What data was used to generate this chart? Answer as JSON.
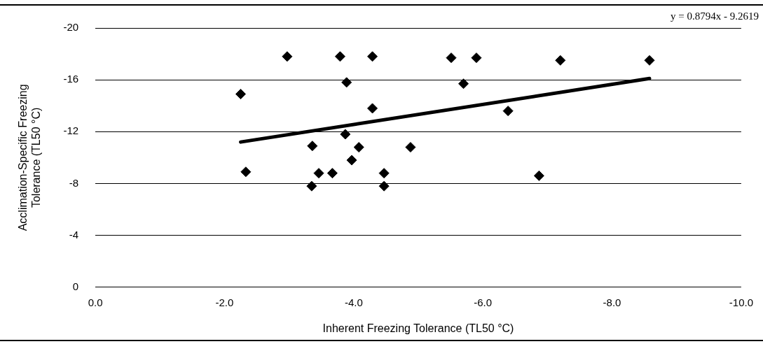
{
  "chart_data": {
    "type": "scatter",
    "xlabel": "Inherent Freezing Tolerance (TL50 °C)",
    "ylabel": "Acclimation-Specific Freezing Tolerance (TL50 °C)",
    "annotations": [
      "y = 0.8794x - 9.2619"
    ],
    "xlim": [
      0,
      -10
    ],
    "ylim": [
      0,
      -20
    ],
    "xticks": [
      {
        "value": 0,
        "label": "0.0"
      },
      {
        "value": -2,
        "label": "-2.0"
      },
      {
        "value": -4,
        "label": "-4.0"
      },
      {
        "value": -6,
        "label": "-6.0"
      },
      {
        "value": -8,
        "label": "-8.0"
      },
      {
        "value": -10,
        "label": "-10.0"
      }
    ],
    "yticks": [
      0,
      -4,
      -8,
      -12,
      -16,
      -20
    ],
    "grid": "y",
    "legend": false,
    "marker": "diamond",
    "series": [
      {
        "color": "#000000",
        "x": [
          -2.25,
          -2.33,
          -2.97,
          -3.36,
          -3.35,
          -3.46,
          -3.67,
          -3.79,
          -3.89,
          -3.87,
          -3.97,
          -4.08,
          -4.29,
          -4.29,
          -4.47,
          -4.47,
          -4.88,
          -5.51,
          -5.9,
          -5.7,
          -6.39,
          -6.87,
          -7.2,
          -8.58
        ],
        "values": [
          -14.9,
          -8.9,
          -17.8,
          -10.9,
          -7.8,
          -8.8,
          -8.8,
          -17.8,
          -15.8,
          -11.8,
          -9.8,
          -10.8,
          -17.8,
          -13.8,
          -8.8,
          -7.8,
          -10.8,
          -17.7,
          -17.7,
          -15.7,
          -13.6,
          -8.6,
          -17.5,
          -17.5
        ]
      },
      {
        "type": "line",
        "color": "#000000",
        "marker": "none",
        "x": [
          -2.25,
          -8.58
        ],
        "values": [
          -11.2,
          -16.1
        ]
      }
    ]
  }
}
